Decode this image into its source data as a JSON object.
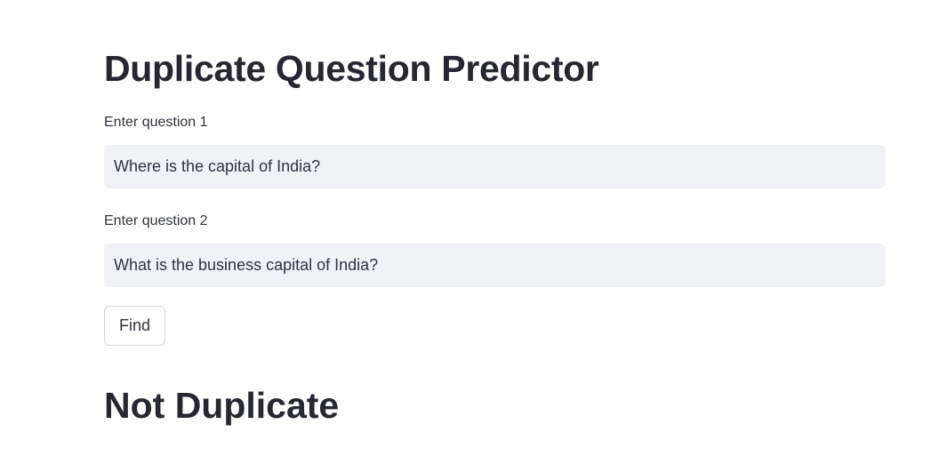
{
  "page": {
    "title": "Duplicate Question Predictor"
  },
  "form": {
    "question1": {
      "label": "Enter question 1",
      "value": "Where is the capital of India?"
    },
    "question2": {
      "label": "Enter question 2",
      "value": "What is the business capital of India?"
    },
    "submit_label": "Find"
  },
  "result": {
    "text": "Not Duplicate"
  },
  "colors": {
    "background": "#ffffff",
    "input_background": "#f0f2f6",
    "text": "#31333f",
    "heading": "#262730",
    "button_border": "#d6d6d9"
  }
}
